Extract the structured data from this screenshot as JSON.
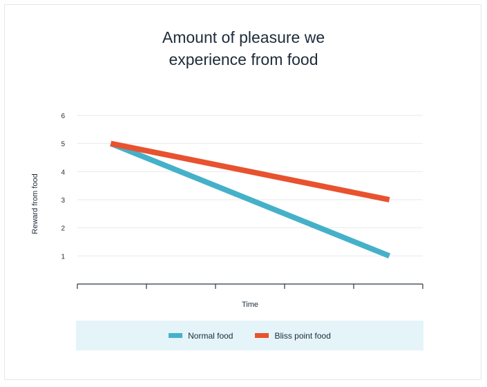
{
  "chart_data": {
    "type": "line",
    "title": [
      "Amount of pleasure we",
      "experience from food"
    ],
    "xlabel": "Time",
    "ylabel": "Reward from food",
    "x": [
      0,
      1
    ],
    "xlim": [
      -0.12,
      1.12
    ],
    "ylim": [
      0,
      6
    ],
    "yticks": [
      1,
      2,
      3,
      4,
      5,
      6
    ],
    "xtick_count": 6,
    "grid": true,
    "legend_position": "bottom",
    "series": [
      {
        "name": "Normal food",
        "color": "#45b1c9",
        "values": [
          5,
          1
        ]
      },
      {
        "name": "Bliss point food",
        "color": "#e8522f",
        "values": [
          5,
          3
        ]
      }
    ]
  }
}
